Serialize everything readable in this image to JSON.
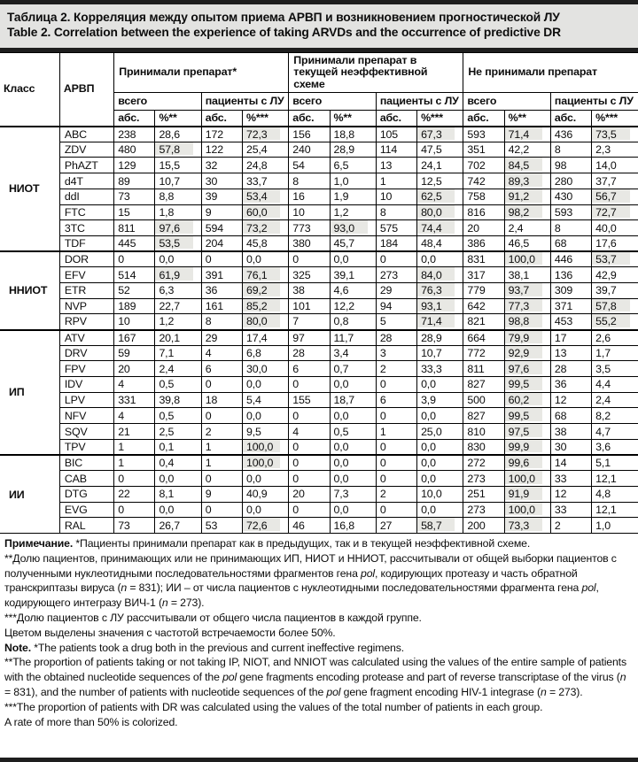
{
  "title": {
    "ru": "Таблица 2. Корреляция между опытом приема АРВП и возникновением прогностической ЛУ",
    "en": "Table 2. Correlation between the experience of taking ARVDs and the occurrence of predictive DR"
  },
  "colors": {
    "highlight": "#e8e8e4",
    "title_bg": "#e3e3e1",
    "rule_bar": "#1e1e1e"
  },
  "header": {
    "class_col": "Класс",
    "drug_col": "АРВП",
    "groups": [
      {
        "label": "Принимали препарат*"
      },
      {
        "label": "Принимали препарат в текущей неэффективной схеме"
      },
      {
        "label": "Не принимали препарат"
      }
    ],
    "subgroups": [
      "всего",
      "пациенты с ЛУ"
    ],
    "measures": [
      "абс.",
      "%**",
      "абс.",
      "%***"
    ]
  },
  "classes": [
    {
      "name": "НИОТ",
      "rows": [
        {
          "drug": "ABC",
          "values": [
            "238",
            "28,6",
            "172",
            "72,3",
            "156",
            "18,8",
            "105",
            "67,3",
            "593",
            "71,4",
            "436",
            "73,5"
          ],
          "hl": [
            3,
            7,
            9,
            11
          ]
        },
        {
          "drug": "ZDV",
          "values": [
            "480",
            "57,8",
            "122",
            "25,4",
            "240",
            "28,9",
            "114",
            "47,5",
            "351",
            "42,2",
            "8",
            "2,3"
          ],
          "hl": [
            1
          ]
        },
        {
          "drug": "PhAZT",
          "values": [
            "129",
            "15,5",
            "32",
            "24,8",
            "54",
            "6,5",
            "13",
            "24,1",
            "702",
            "84,5",
            "98",
            "14,0"
          ],
          "hl": [
            9
          ]
        },
        {
          "drug": "d4T",
          "values": [
            "89",
            "10,7",
            "30",
            "33,7",
            "8",
            "1,0",
            "1",
            "12,5",
            "742",
            "89,3",
            "280",
            "37,7"
          ],
          "hl": [
            9
          ]
        },
        {
          "drug": "ddI",
          "values": [
            "73",
            "8,8",
            "39",
            "53,4",
            "16",
            "1,9",
            "10",
            "62,5",
            "758",
            "91,2",
            "430",
            "56,7"
          ],
          "hl": [
            3,
            7,
            9,
            11
          ]
        },
        {
          "drug": "FTC",
          "values": [
            "15",
            "1,8",
            "9",
            "60,0",
            "10",
            "1,2",
            "8",
            "80,0",
            "816",
            "98,2",
            "593",
            "72,7"
          ],
          "hl": [
            3,
            7,
            9,
            11
          ]
        },
        {
          "drug": "3TC",
          "values": [
            "811",
            "97,6",
            "594",
            "73,2",
            "773",
            "93,0",
            "575",
            "74,4",
            "20",
            "2,4",
            "8",
            "40,0"
          ],
          "hl": [
            1,
            3,
            5,
            7
          ]
        },
        {
          "drug": "TDF",
          "values": [
            "445",
            "53,5",
            "204",
            "45,8",
            "380",
            "45,7",
            "184",
            "48,4",
            "386",
            "46,5",
            "68",
            "17,6"
          ],
          "hl": [
            1
          ]
        }
      ]
    },
    {
      "name": "ННИОТ",
      "rows": [
        {
          "drug": "DOR",
          "values": [
            "0",
            "0,0",
            "0",
            "0,0",
            "0",
            "0,0",
            "0",
            "0,0",
            "831",
            "100,0",
            "446",
            "53,7"
          ],
          "hl": [
            9,
            11
          ]
        },
        {
          "drug": "EFV",
          "values": [
            "514",
            "61,9",
            "391",
            "76,1",
            "325",
            "39,1",
            "273",
            "84,0",
            "317",
            "38,1",
            "136",
            "42,9"
          ],
          "hl": [
            1,
            3,
            7
          ]
        },
        {
          "drug": "ETR",
          "values": [
            "52",
            "6,3",
            "36",
            "69,2",
            "38",
            "4,6",
            "29",
            "76,3",
            "779",
            "93,7",
            "309",
            "39,7"
          ],
          "hl": [
            3,
            7,
            9
          ]
        },
        {
          "drug": "NVP",
          "values": [
            "189",
            "22,7",
            "161",
            "85,2",
            "101",
            "12,2",
            "94",
            "93,1",
            "642",
            "77,3",
            "371",
            "57,8"
          ],
          "hl": [
            3,
            7,
            9,
            11
          ]
        },
        {
          "drug": "RPV",
          "values": [
            "10",
            "1,2",
            "8",
            "80,0",
            "7",
            "0,8",
            "5",
            "71,4",
            "821",
            "98,8",
            "453",
            "55,2"
          ],
          "hl": [
            3,
            7,
            9,
            11
          ]
        }
      ]
    },
    {
      "name": "ИП",
      "rows": [
        {
          "drug": "ATV",
          "values": [
            "167",
            "20,1",
            "29",
            "17,4",
            "97",
            "11,7",
            "28",
            "28,9",
            "664",
            "79,9",
            "17",
            "2,6"
          ],
          "hl": [
            9
          ]
        },
        {
          "drug": "DRV",
          "values": [
            "59",
            "7,1",
            "4",
            "6,8",
            "28",
            "3,4",
            "3",
            "10,7",
            "772",
            "92,9",
            "13",
            "1,7"
          ],
          "hl": [
            9
          ]
        },
        {
          "drug": "FPV",
          "values": [
            "20",
            "2,4",
            "6",
            "30,0",
            "6",
            "0,7",
            "2",
            "33,3",
            "811",
            "97,6",
            "28",
            "3,5"
          ],
          "hl": [
            9
          ]
        },
        {
          "drug": "IDV",
          "values": [
            "4",
            "0,5",
            "0",
            "0,0",
            "0",
            "0,0",
            "0",
            "0,0",
            "827",
            "99,5",
            "36",
            "4,4"
          ],
          "hl": [
            9
          ]
        },
        {
          "drug": "LPV",
          "values": [
            "331",
            "39,8",
            "18",
            "5,4",
            "155",
            "18,7",
            "6",
            "3,9",
            "500",
            "60,2",
            "12",
            "2,4"
          ],
          "hl": [
            9
          ]
        },
        {
          "drug": "NFV",
          "values": [
            "4",
            "0,5",
            "0",
            "0,0",
            "0",
            "0,0",
            "0",
            "0,0",
            "827",
            "99,5",
            "68",
            "8,2"
          ],
          "hl": [
            9
          ]
        },
        {
          "drug": "SQV",
          "values": [
            "21",
            "2,5",
            "2",
            "9,5",
            "4",
            "0,5",
            "1",
            "25,0",
            "810",
            "97,5",
            "38",
            "4,7"
          ],
          "hl": [
            9
          ]
        },
        {
          "drug": "TPV",
          "values": [
            "1",
            "0,1",
            "1",
            "100,0",
            "0",
            "0,0",
            "0",
            "0,0",
            "830",
            "99,9",
            "30",
            "3,6"
          ],
          "hl": [
            3,
            9
          ]
        }
      ]
    },
    {
      "name": "ИИ",
      "rows": [
        {
          "drug": "BIC",
          "values": [
            "1",
            "0,4",
            "1",
            "100,0",
            "0",
            "0,0",
            "0",
            "0,0",
            "272",
            "99,6",
            "14",
            "5,1"
          ],
          "hl": [
            3,
            9
          ]
        },
        {
          "drug": "CAB",
          "values": [
            "0",
            "0,0",
            "0",
            "0,0",
            "0",
            "0,0",
            "0",
            "0,0",
            "273",
            "100,0",
            "33",
            "12,1"
          ],
          "hl": [
            9
          ]
        },
        {
          "drug": "DTG",
          "values": [
            "22",
            "8,1",
            "9",
            "40,9",
            "20",
            "7,3",
            "2",
            "10,0",
            "251",
            "91,9",
            "12",
            "4,8"
          ],
          "hl": [
            9
          ]
        },
        {
          "drug": "EVG",
          "values": [
            "0",
            "0,0",
            "0",
            "0,0",
            "0",
            "0,0",
            "0",
            "0,0",
            "273",
            "100,0",
            "33",
            "12,1"
          ],
          "hl": [
            9
          ]
        },
        {
          "drug": "RAL",
          "values": [
            "73",
            "26,7",
            "53",
            "72,6",
            "46",
            "16,8",
            "27",
            "58,7",
            "200",
            "73,3",
            "2",
            "1,0"
          ],
          "hl": [
            3,
            7,
            9
          ]
        }
      ]
    }
  ],
  "notes": [
    [
      {
        "t": "Примечание.",
        "b": true
      },
      {
        "t": " *Пациенты принимали препарат как в предыдущих, так и в текущей неэффективной схеме."
      }
    ],
    [
      {
        "t": "**Долю пациентов, принимающих или не принимающих ИП, НИОТ и ННИОТ, рассчитывали от общей выборки пациентов с полученными нуклеотидными последовательностями фрагментов гена "
      },
      {
        "t": "pol",
        "i": true
      },
      {
        "t": ", кодирующих протеазу и часть обратной транскриптазы вируса ("
      },
      {
        "t": "n",
        "i": true
      },
      {
        "t": " = 831); ИИ – от числа пациентов с нуклеотидными последовательностями фрагмента гена "
      },
      {
        "t": "pol",
        "i": true
      },
      {
        "t": ", кодирующего интегразу ВИЧ-1 ("
      },
      {
        "t": "n",
        "i": true
      },
      {
        "t": " = 273)."
      }
    ],
    [
      {
        "t": "***Долю пациентов с ЛУ рассчитывали от общего числа пациентов в каждой группе."
      }
    ],
    [
      {
        "t": "Цветом выделены значения с частотой встречаемости более 50%."
      }
    ],
    [
      {
        "t": "Note.",
        "b": true
      },
      {
        "t": " *The patients took a drug both in the previous and current ineffective regimens."
      }
    ],
    [
      {
        "t": "**The proportion of patients taking or not taking IP, NIOT, and NNIOT was calculated using the values of the entire sample of patients with the obtained nucleotide sequences of the "
      },
      {
        "t": "pol",
        "i": true
      },
      {
        "t": " gene fragments encoding protease and part of reverse transcriptase of the virus ("
      },
      {
        "t": "n",
        "i": true
      },
      {
        "t": " = 831), and the number of patients with nucleotide sequences of the "
      },
      {
        "t": "pol",
        "i": true
      },
      {
        "t": " gene fragment encoding HIV-1 integrase ("
      },
      {
        "t": "n",
        "i": true
      },
      {
        "t": " = 273)."
      }
    ],
    [
      {
        "t": "***The proportion of patients with DR was calculated using the values of the total number of patients in each group."
      }
    ],
    [
      {
        "t": "A rate of more than 50% is colorized."
      }
    ]
  ]
}
